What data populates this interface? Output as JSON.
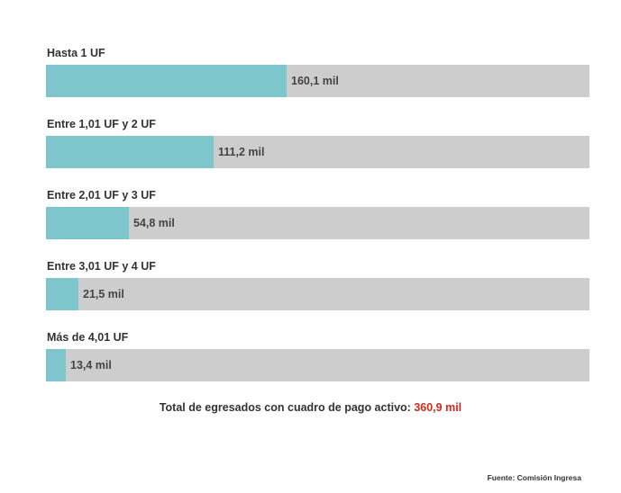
{
  "chart_data": {
    "type": "bar",
    "orientation": "horizontal",
    "categories": [
      "Hasta 1 UF",
      "Entre 1,01 UF y 2 UF",
      "Entre 2,01 UF y 3 UF",
      "Entre 3,01 UF y 4 UF",
      "Más de 4,01 UF"
    ],
    "values": [
      160.1,
      111.2,
      54.8,
      21.5,
      13.4
    ],
    "value_labels": [
      "160,1 mil",
      "111,2 mil",
      "54,8 mil",
      "21,5 mil",
      "13,4 mil"
    ],
    "xlim": [
      0,
      360.9
    ],
    "grid": false,
    "legend": "none"
  },
  "total": {
    "label": "Total de egresados con cuadro de pago activo:",
    "value": "360,9 mil"
  },
  "source": {
    "label": "Fuente:",
    "value": "Comisión Ingresa"
  },
  "colors": {
    "bar_fill": "#7cc6cc",
    "bar_track": "#cdcdcd",
    "total_value": "#d9271c"
  }
}
